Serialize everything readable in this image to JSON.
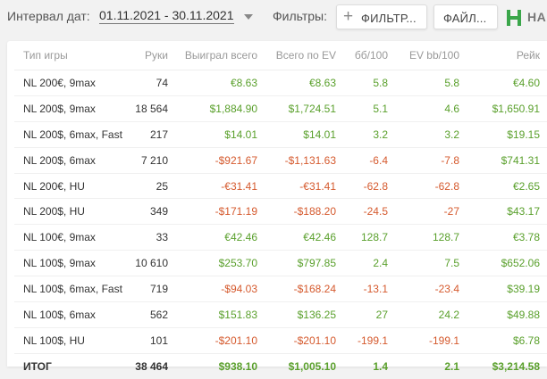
{
  "header": {
    "date_label": "Интервал дат:",
    "date_value": "01.11.2021 - 30.11.2021",
    "filters_label": "Фильтры:",
    "filter_button": "ФИЛЬТР...",
    "files_button": "ФАЙЛ...",
    "brand_text": "НА",
    "brand_color": "#3aa64a"
  },
  "table": {
    "columns": [
      "Тип игры",
      "Руки",
      "Выиграл всего",
      "Всего по EV",
      "бб/100",
      "EV bb/100",
      "Рейк"
    ],
    "rows": [
      {
        "game": "NL 200€, 9max",
        "hands": "74",
        "won": "€8.63",
        "ev": "€8.63",
        "bb100": "5.8",
        "evbb100": "5.8",
        "rake": "€4.60",
        "sign": [
          "pos",
          "pos",
          "pos",
          "pos",
          "pos"
        ]
      },
      {
        "game": "NL 200$, 9max",
        "hands": "18 564",
        "won": "$1,884.90",
        "ev": "$1,724.51",
        "bb100": "5.1",
        "evbb100": "4.6",
        "rake": "$1,650.91",
        "sign": [
          "pos",
          "pos",
          "pos",
          "pos",
          "pos"
        ]
      },
      {
        "game": "NL 200$, 6max, Fast",
        "hands": "217",
        "won": "$14.01",
        "ev": "$14.01",
        "bb100": "3.2",
        "evbb100": "3.2",
        "rake": "$19.15",
        "sign": [
          "pos",
          "pos",
          "pos",
          "pos",
          "pos"
        ]
      },
      {
        "game": "NL 200$, 6max",
        "hands": "7 210",
        "won": "-$921.67",
        "ev": "-$1,131.63",
        "bb100": "-6.4",
        "evbb100": "-7.8",
        "rake": "$741.31",
        "sign": [
          "neg",
          "neg",
          "neg",
          "neg",
          "pos"
        ]
      },
      {
        "game": "NL 200€, HU",
        "hands": "25",
        "won": "-€31.41",
        "ev": "-€31.41",
        "bb100": "-62.8",
        "evbb100": "-62.8",
        "rake": "€2.65",
        "sign": [
          "neg",
          "neg",
          "neg",
          "neg",
          "pos"
        ]
      },
      {
        "game": "NL 200$, HU",
        "hands": "349",
        "won": "-$171.19",
        "ev": "-$188.20",
        "bb100": "-24.5",
        "evbb100": "-27",
        "rake": "$43.17",
        "sign": [
          "neg",
          "neg",
          "neg",
          "neg",
          "pos"
        ]
      },
      {
        "game": "NL 100€, 9max",
        "hands": "33",
        "won": "€42.46",
        "ev": "€42.46",
        "bb100": "128.7",
        "evbb100": "128.7",
        "rake": "€3.78",
        "sign": [
          "pos",
          "pos",
          "pos",
          "pos",
          "pos"
        ]
      },
      {
        "game": "NL 100$, 9max",
        "hands": "10 610",
        "won": "$253.70",
        "ev": "$797.85",
        "bb100": "2.4",
        "evbb100": "7.5",
        "rake": "$652.06",
        "sign": [
          "pos",
          "pos",
          "pos",
          "pos",
          "pos"
        ]
      },
      {
        "game": "NL 100$, 6max, Fast",
        "hands": "719",
        "won": "-$94.03",
        "ev": "-$168.24",
        "bb100": "-13.1",
        "evbb100": "-23.4",
        "rake": "$39.19",
        "sign": [
          "neg",
          "neg",
          "neg",
          "neg",
          "pos"
        ]
      },
      {
        "game": "NL 100$, 6max",
        "hands": "562",
        "won": "$151.83",
        "ev": "$136.25",
        "bb100": "27",
        "evbb100": "24.2",
        "rake": "$49.88",
        "sign": [
          "pos",
          "pos",
          "pos",
          "pos",
          "pos"
        ]
      },
      {
        "game": "NL 100$, HU",
        "hands": "101",
        "won": "-$201.10",
        "ev": "-$201.10",
        "bb100": "-199.1",
        "evbb100": "-199.1",
        "rake": "$6.78",
        "sign": [
          "neg",
          "neg",
          "neg",
          "neg",
          "pos"
        ]
      }
    ],
    "total": {
      "game": "ИТОГ",
      "hands": "38 464",
      "won": "$938.10",
      "ev": "$1,005.10",
      "bb100": "1.4",
      "evbb100": "2.1",
      "rake": "$3,214.58",
      "sign": [
        "pos",
        "pos",
        "pos",
        "pos",
        "pos"
      ]
    }
  }
}
